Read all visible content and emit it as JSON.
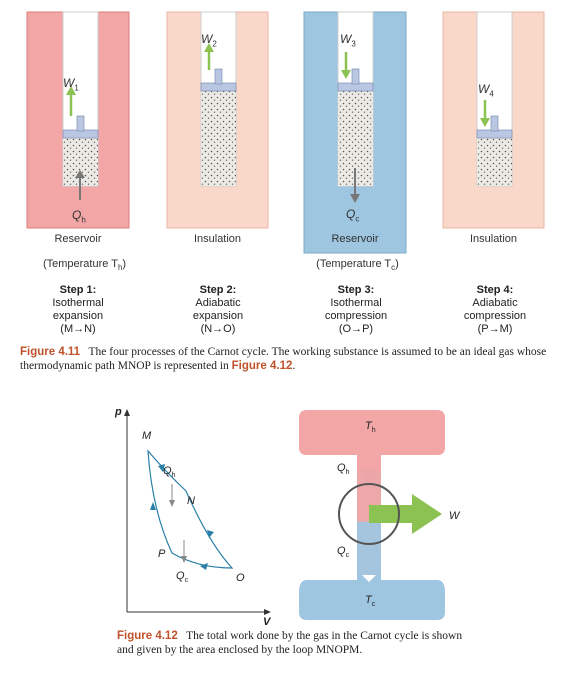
{
  "fig411": {
    "panels": [
      {
        "work_label": "W",
        "work_sub": "1",
        "heat_label": "Q",
        "heat_sub": "h",
        "box_label": "Reservoir",
        "temp_prefix": "(Temperature T",
        "temp_sub": "h",
        "temp_suffix": ")",
        "step_title": "Step 1:",
        "step_line1": "Isothermal",
        "step_line2": "expansion",
        "step_path": "(M→N)"
      },
      {
        "work_label": "W",
        "work_sub": "2",
        "box_label": "Insulation",
        "step_title": "Step 2:",
        "step_line1": "Adiabatic",
        "step_line2": "expansion",
        "step_path": "(N→O)"
      },
      {
        "work_label": "W",
        "work_sub": "3",
        "heat_label": "Q",
        "heat_sub": "c",
        "box_label": "Reservoir",
        "temp_prefix": "(Temperature T",
        "temp_sub": "c",
        "temp_suffix": ")",
        "step_title": "Step 3:",
        "step_line1": "Isothermal",
        "step_line2": "compression",
        "step_path": "(O→P)"
      },
      {
        "work_label": "W",
        "work_sub": "4",
        "box_label": "Insulation",
        "step_title": "Step 4:",
        "step_line1": "Adiabatic",
        "step_line2": "compression",
        "step_path": "(P→M)"
      }
    ],
    "caption_label": "Figure 4.11",
    "caption_text": "The four processes of the Carnot cycle. The working substance is assumed to be an ideal gas whose thermodynamic path MNOP is represented in",
    "caption_ref": "Figure 4.12",
    "caption_end": "."
  },
  "fig412": {
    "axis_p": "p",
    "axis_v": "V",
    "points": {
      "M": "M",
      "N": "N",
      "O": "O",
      "P": "P"
    },
    "qh": "Q",
    "qh_sub": "h",
    "qc": "Q",
    "qc_sub": "c",
    "engine_th": "T",
    "engine_th_sub": "h",
    "engine_tc": "T",
    "engine_tc_sub": "c",
    "engine_qh": "Q",
    "engine_qh_sub": "h",
    "engine_qc": "Q",
    "engine_qc_sub": "c",
    "engine_w": "W",
    "caption_label": "Figure 4.12",
    "caption_text": "The total work done by the gas in the Carnot cycle is shown and given by the area enclosed by the loop MNOPM."
  },
  "colors": {
    "reservoir_hot": "#f2a6a6",
    "reservoir_cold": "#9ec6e0",
    "insulation": "#f9d7c9",
    "work_arrow": "#8cc251",
    "caption_accent": "#c0532c"
  }
}
